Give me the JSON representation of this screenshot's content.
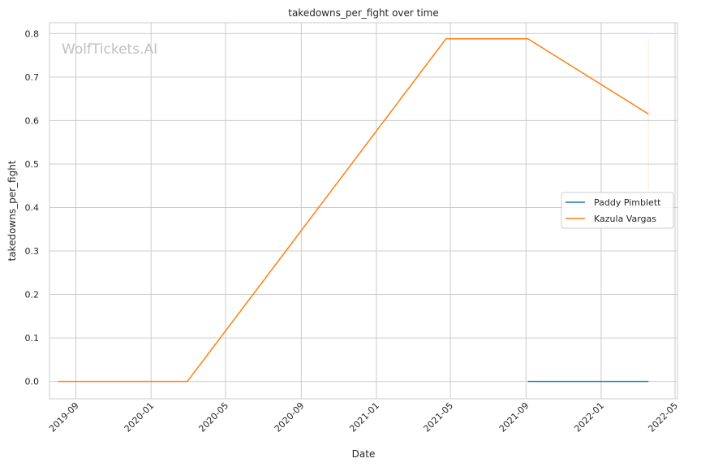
{
  "chart_data": {
    "type": "line",
    "title": "takedowns_per_fight over time",
    "xlabel": "Date",
    "ylabel": "takedowns_per_fight",
    "watermark": "WolfTickets.AI",
    "grid": true,
    "legend_position": "center-right",
    "xlim": [
      "2019-07-20",
      "2022-05-05"
    ],
    "ylim": [
      -0.04,
      0.825
    ],
    "x_ticks": [
      {
        "value": "2019-09-01",
        "label": "2019-09"
      },
      {
        "value": "2020-01-01",
        "label": "2020-01"
      },
      {
        "value": "2020-05-01",
        "label": "2020-05"
      },
      {
        "value": "2020-09-01",
        "label": "2020-09"
      },
      {
        "value": "2021-01-01",
        "label": "2021-01"
      },
      {
        "value": "2021-05-01",
        "label": "2021-05"
      },
      {
        "value": "2021-09-01",
        "label": "2021-09"
      },
      {
        "value": "2022-01-01",
        "label": "2022-01"
      },
      {
        "value": "2022-05-01",
        "label": "2022-05"
      }
    ],
    "y_ticks": [
      {
        "value": 0.0,
        "label": "0.0"
      },
      {
        "value": 0.1,
        "label": "0.1"
      },
      {
        "value": 0.2,
        "label": "0.2"
      },
      {
        "value": 0.3,
        "label": "0.3"
      },
      {
        "value": 0.4,
        "label": "0.4"
      },
      {
        "value": 0.5,
        "label": "0.5"
      },
      {
        "value": 0.6,
        "label": "0.6"
      },
      {
        "value": 0.7,
        "label": "0.7"
      },
      {
        "value": 0.8,
        "label": "0.8"
      }
    ],
    "series": [
      {
        "name": "Paddy Pimblett",
        "color": "#1f77b4",
        "x": [
          "2021-09-04",
          "2022-03-19"
        ],
        "y": [
          0.0,
          0.0
        ]
      },
      {
        "name": "Kazula Vargas",
        "color": "#ff7f0e",
        "x": [
          "2019-08-03",
          "2020-02-29",
          "2021-04-24",
          "2021-09-04",
          "2022-03-19"
        ],
        "y": [
          0.0,
          0.0,
          0.788,
          0.788,
          0.615
        ]
      }
    ]
  }
}
